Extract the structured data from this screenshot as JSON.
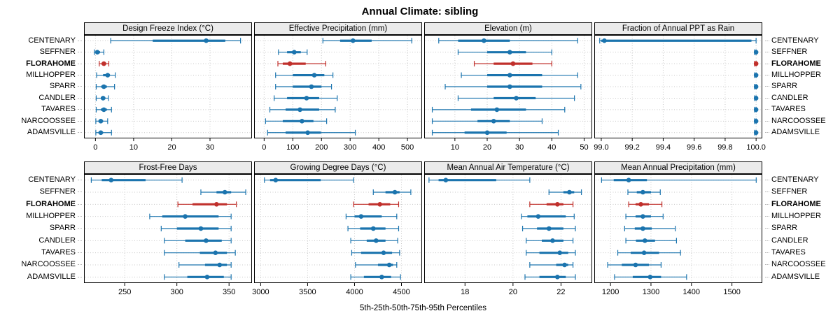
{
  "title": "Annual Climate: sibling",
  "caption": "5th-25th-50th-75th-95th Percentiles",
  "colors": {
    "series": "#1b74ae",
    "highlight": "#c0302c",
    "grid": "#c9c9c9",
    "strip_bg": "#ebebeb",
    "border": "#000000"
  },
  "stations": [
    "CENTENARY",
    "SEFFNER",
    "FLORAHOME",
    "MILLHOPPER",
    "SPARR",
    "CANDLER",
    "TAVARES",
    "NARCOOSSEE",
    "ADAMSVILLE"
  ],
  "highlight_station": "FLORAHOME",
  "chart_data": {
    "type": "dotplot-percentile-intervals",
    "layout": {
      "rows": 2,
      "cols": 4,
      "legend": "none",
      "grid": "dotted"
    },
    "percentiles": [
      5,
      25,
      50,
      75,
      95
    ],
    "encoding": {
      "thin_line": "5th-95th percentile with end caps",
      "thick_line": "25th-75th percentile",
      "dot": "50th percentile (median)"
    },
    "panels": [
      {
        "title": "Design Freeze Index (°C)",
        "xlim": [
          -3,
          41
        ],
        "tick_values": [
          0,
          10,
          20,
          30
        ],
        "tick_labels": [
          "0",
          "10",
          "20",
          "30"
        ],
        "values": [
          [
            4,
            15,
            29,
            34,
            38
          ],
          [
            -0.3,
            0.2,
            0.5,
            1.2,
            2.2
          ],
          [
            1,
            1.6,
            2.2,
            2.8,
            3.5
          ],
          [
            0.3,
            2,
            3.2,
            3.8,
            5.2
          ],
          [
            0.2,
            1.5,
            2.2,
            3,
            5
          ],
          [
            0.2,
            1.4,
            2,
            2.6,
            3.4
          ],
          [
            0.2,
            1.4,
            2.2,
            3,
            4.2
          ],
          [
            0.1,
            0.8,
            1.4,
            2,
            3.2
          ],
          [
            0.1,
            0.8,
            1.4,
            2,
            4.2
          ]
        ]
      },
      {
        "title": "Effective Precipitation (mm)",
        "xlim": [
          -35,
          551
        ],
        "tick_values": [
          0,
          100,
          200,
          300,
          400,
          500
        ],
        "tick_labels": [
          "0",
          "100",
          "200",
          "300",
          "400",
          "500"
        ],
        "values": [
          [
            205,
            265,
            310,
            375,
            515
          ],
          [
            50,
            80,
            105,
            128,
            150
          ],
          [
            48,
            65,
            90,
            145,
            215
          ],
          [
            40,
            100,
            175,
            210,
            240
          ],
          [
            40,
            100,
            165,
            200,
            235
          ],
          [
            35,
            80,
            148,
            192,
            255
          ],
          [
            20,
            75,
            125,
            192,
            248
          ],
          [
            5,
            65,
            132,
            172,
            218
          ],
          [
            12,
            75,
            152,
            198,
            318
          ]
        ]
      },
      {
        "title": "Elevation (m)",
        "xlim": [
          0.5,
          52.5
        ],
        "tick_values": [
          10,
          20,
          30,
          40,
          50
        ],
        "tick_labels": [
          "10",
          "20",
          "30",
          "40",
          "50"
        ],
        "values": [
          [
            5,
            11,
            19,
            27,
            48
          ],
          [
            11,
            20,
            27,
            32,
            40
          ],
          [
            16,
            22,
            28,
            34,
            40
          ],
          [
            12,
            20,
            27,
            37,
            48
          ],
          [
            7,
            20,
            27,
            37,
            49
          ],
          [
            11,
            22,
            29,
            35,
            47
          ],
          [
            3,
            15,
            23,
            32,
            44
          ],
          [
            3,
            17,
            22,
            27,
            37
          ],
          [
            3,
            13,
            20,
            26,
            42
          ]
        ]
      },
      {
        "title": "Fraction of Annual PPT as Rain",
        "xlim": [
          98.955,
          100.04
        ],
        "tick_values": [
          99.0,
          99.2,
          99.4,
          99.6,
          99.8,
          100.0
        ],
        "tick_labels": [
          "99.0",
          "99.2",
          "99.4",
          "99.6",
          "99.8",
          "100.0"
        ],
        "values": [
          [
            98.99,
            99.0,
            99.02,
            99.97,
            100.0
          ],
          [
            99.99,
            100,
            100,
            100,
            100
          ],
          [
            99.99,
            100,
            100,
            100,
            100
          ],
          [
            99.99,
            100,
            100,
            100,
            100
          ],
          [
            99.99,
            100,
            100,
            100,
            100
          ],
          [
            99.99,
            100,
            100,
            100,
            100
          ],
          [
            99.99,
            100,
            100,
            100,
            100
          ],
          [
            99.99,
            100,
            100,
            100,
            100
          ],
          [
            99.99,
            100,
            100,
            100,
            100
          ]
        ]
      },
      {
        "title": "Frost-Free Days",
        "xlim": [
          211,
          372
        ],
        "tick_values": [
          250,
          300,
          350
        ],
        "tick_labels": [
          "250",
          "300",
          "350"
        ],
        "values": [
          [
            218,
            228,
            237,
            270,
            305
          ],
          [
            323,
            338,
            346,
            352,
            366
          ],
          [
            301,
            315,
            338,
            348,
            357
          ],
          [
            274,
            286,
            308,
            340,
            352
          ],
          [
            285,
            300,
            323,
            340,
            352
          ],
          [
            288,
            308,
            328,
            343,
            352
          ],
          [
            288,
            322,
            337,
            348,
            356
          ],
          [
            302,
            327,
            341,
            348,
            352
          ],
          [
            288,
            310,
            329,
            345,
            352
          ]
        ]
      },
      {
        "title": "Growing Degree Days (°C)",
        "xlim": [
          2930,
          4720
        ],
        "tick_values": [
          3000,
          3500,
          4000,
          4500
        ],
        "tick_labels": [
          "3000",
          "3500",
          "4000",
          "4500"
        ],
        "values": [
          [
            3040,
            3100,
            3160,
            3640,
            3990
          ],
          [
            4200,
            4330,
            4430,
            4480,
            4600
          ],
          [
            3990,
            4150,
            4270,
            4380,
            4470
          ],
          [
            3910,
            4000,
            4070,
            4290,
            4450
          ],
          [
            3930,
            4060,
            4200,
            4330,
            4470
          ],
          [
            3960,
            4130,
            4230,
            4330,
            4460
          ],
          [
            3970,
            4070,
            4310,
            4400,
            4480
          ],
          [
            4010,
            4250,
            4370,
            4410,
            4450
          ],
          [
            3960,
            4100,
            4290,
            4390,
            4490
          ]
        ]
      },
      {
        "title": "Mean Annual Air Temperature (°C)",
        "xlim": [
          16.3,
          23.3
        ],
        "tick_values": [
          18,
          20,
          22
        ],
        "tick_labels": [
          "18",
          "20",
          "22"
        ],
        "values": [
          [
            16.5,
            16.9,
            17.2,
            19.3,
            20.7
          ],
          [
            21.5,
            22.1,
            22.35,
            22.55,
            22.85
          ],
          [
            20.7,
            21.4,
            21.85,
            22.1,
            22.5
          ],
          [
            20.35,
            20.6,
            21.05,
            22.2,
            22.55
          ],
          [
            20.4,
            21.0,
            21.5,
            22.1,
            22.6
          ],
          [
            20.55,
            21.2,
            21.65,
            22.1,
            22.5
          ],
          [
            20.55,
            21.1,
            21.95,
            22.3,
            22.6
          ],
          [
            20.7,
            21.8,
            22.15,
            22.3,
            22.5
          ],
          [
            20.5,
            21.1,
            21.85,
            22.2,
            22.6
          ]
        ]
      },
      {
        "title": "Mean Annual Precipitation (mm)",
        "xlim": [
          1160,
          1575
        ],
        "tick_values": [
          1200,
          1300,
          1400,
          1500
        ],
        "tick_labels": [
          "1200",
          "1300",
          "1400",
          "1500"
        ],
        "values": [
          [
            1178,
            1208,
            1245,
            1290,
            1560
          ],
          [
            1243,
            1265,
            1280,
            1300,
            1323
          ],
          [
            1245,
            1262,
            1275,
            1295,
            1327
          ],
          [
            1238,
            1262,
            1280,
            1300,
            1330
          ],
          [
            1235,
            1260,
            1280,
            1302,
            1360
          ],
          [
            1238,
            1263,
            1285,
            1310,
            1363
          ],
          [
            1218,
            1250,
            1283,
            1320,
            1373
          ],
          [
            1193,
            1228,
            1262,
            1295,
            1325
          ],
          [
            1210,
            1255,
            1298,
            1325,
            1388
          ]
        ]
      }
    ]
  }
}
